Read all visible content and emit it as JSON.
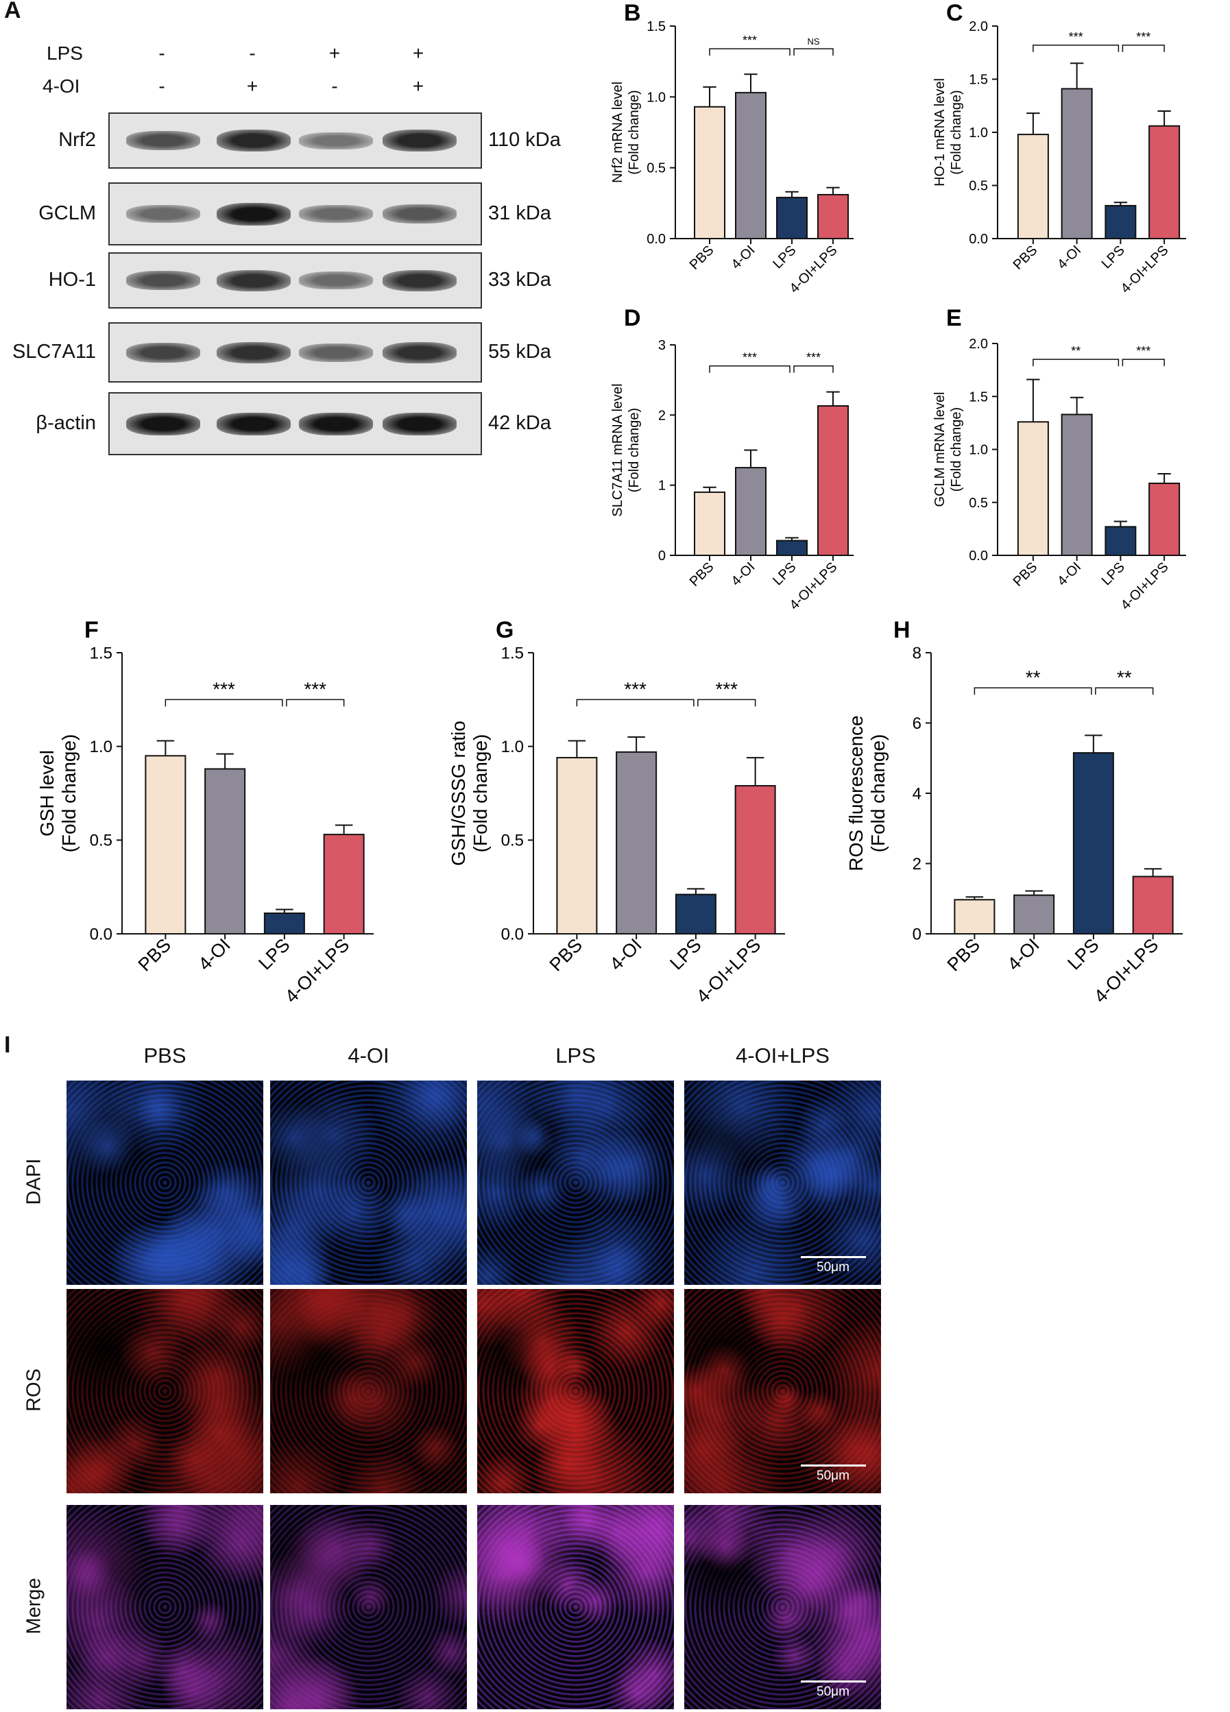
{
  "panelA": {
    "letter": "A",
    "rows": [
      {
        "label": "LPS",
        "signs": [
          "-",
          "-",
          "+",
          "+"
        ]
      },
      {
        "label": "4-OI",
        "signs": [
          "-",
          "+",
          "-",
          "+"
        ]
      }
    ],
    "blots": [
      {
        "protein": "Nrf2",
        "kda": "110 kDa",
        "intensity": [
          0.65,
          0.85,
          0.45,
          0.85
        ]
      },
      {
        "protein": "GCLM",
        "kda": "31 kDa",
        "intensity": [
          0.5,
          0.95,
          0.5,
          0.6
        ]
      },
      {
        "protein": "HO-1",
        "kda": "33 kDa",
        "intensity": [
          0.65,
          0.8,
          0.5,
          0.8
        ]
      },
      {
        "protein": "SLC7A11",
        "kda": "55 kDa",
        "intensity": [
          0.7,
          0.8,
          0.55,
          0.8
        ]
      },
      {
        "protein": "β-actin",
        "kda": "42 kDa",
        "intensity": [
          0.95,
          0.95,
          0.95,
          0.95
        ]
      }
    ]
  },
  "colors": {
    "PBS": "#f5e3cf",
    "4-OI": "#8e8a97",
    "LPS": "#1c3a63",
    "4-OI+LPS": "#d85866"
  },
  "chart_data": [
    {
      "id": "B",
      "type": "bar",
      "letter": "B",
      "ylabel": [
        "Nrf2 mRNA level",
        "(Fold change)"
      ],
      "categories": [
        "PBS",
        "4-OI",
        "LPS",
        "4-OI+LPS"
      ],
      "values": [
        0.93,
        1.03,
        0.29,
        0.31
      ],
      "errors": [
        0.14,
        0.13,
        0.04,
        0.05
      ],
      "ylim": [
        0,
        1.5
      ],
      "yticks": [
        "0.0",
        "0.5",
        "1.0",
        "1.5"
      ],
      "yticksVals": [
        0,
        0.5,
        1.0,
        1.5
      ],
      "sig": [
        {
          "from": 0,
          "to": 2,
          "label": "***",
          "y": 1.34
        },
        {
          "from": 2,
          "to": 3,
          "label": "NS",
          "y": 1.34
        }
      ]
    },
    {
      "id": "C",
      "type": "bar",
      "letter": "C",
      "ylabel": [
        "HO-1 mRNA level",
        "(Fold change)"
      ],
      "categories": [
        "PBS",
        "4-OI",
        "LPS",
        "4-OI+LPS"
      ],
      "values": [
        0.98,
        1.41,
        0.31,
        1.06
      ],
      "errors": [
        0.2,
        0.24,
        0.03,
        0.14
      ],
      "ylim": [
        0,
        2.0
      ],
      "yticks": [
        "0.0",
        "0.5",
        "1.0",
        "1.5",
        "2.0"
      ],
      "yticksVals": [
        0,
        0.5,
        1.0,
        1.5,
        2.0
      ],
      "sig": [
        {
          "from": 0,
          "to": 2,
          "label": "***",
          "y": 1.82
        },
        {
          "from": 2,
          "to": 3,
          "label": "***",
          "y": 1.82
        }
      ]
    },
    {
      "id": "D",
      "type": "bar",
      "letter": "D",
      "ylabel": [
        "SLC7A11 mRNA level",
        "(Fold change)"
      ],
      "categories": [
        "PBS",
        "4-OI",
        "LPS",
        "4-OI+LPS"
      ],
      "values": [
        0.9,
        1.25,
        0.21,
        2.13
      ],
      "errors": [
        0.07,
        0.25,
        0.04,
        0.2
      ],
      "ylim": [
        0,
        3
      ],
      "yticks": [
        "0",
        "1",
        "2",
        "3"
      ],
      "yticksVals": [
        0,
        1,
        2,
        3
      ],
      "sig": [
        {
          "from": 0,
          "to": 2,
          "label": "***",
          "y": 2.7
        },
        {
          "from": 2,
          "to": 3,
          "label": "***",
          "y": 2.7
        }
      ]
    },
    {
      "id": "E",
      "type": "bar",
      "letter": "E",
      "ylabel": [
        "GCLM mRNA level",
        "(Fold change)"
      ],
      "categories": [
        "PBS",
        "4-OI",
        "LPS",
        "4-OI+LPS"
      ],
      "values": [
        1.26,
        1.33,
        0.27,
        0.68
      ],
      "errors": [
        0.4,
        0.16,
        0.05,
        0.09
      ],
      "ylim": [
        0,
        2.0
      ],
      "yticks": [
        "0.0",
        "0.5",
        "1.0",
        "1.5",
        "2.0"
      ],
      "yticksVals": [
        0,
        0.5,
        1.0,
        1.5,
        2.0
      ],
      "sig": [
        {
          "from": 0,
          "to": 2,
          "label": "**",
          "y": 1.85
        },
        {
          "from": 2,
          "to": 3,
          "label": "***",
          "y": 1.85
        }
      ]
    },
    {
      "id": "F",
      "type": "bar",
      "letter": "F",
      "ylabel": [
        "GSH level",
        "(Fold change)"
      ],
      "categories": [
        "PBS",
        "4-OI",
        "LPS",
        "4-OI+LPS"
      ],
      "values": [
        0.95,
        0.88,
        0.11,
        0.53
      ],
      "errors": [
        0.08,
        0.08,
        0.02,
        0.05
      ],
      "ylim": [
        0,
        1.5
      ],
      "yticks": [
        "0.0",
        "0.5",
        "1.0",
        "1.5"
      ],
      "yticksVals": [
        0,
        0.5,
        1.0,
        1.5
      ],
      "sig": [
        {
          "from": 0,
          "to": 2,
          "label": "***",
          "y": 1.25
        },
        {
          "from": 2,
          "to": 3,
          "label": "***",
          "y": 1.25
        }
      ]
    },
    {
      "id": "G",
      "type": "bar",
      "letter": "G",
      "ylabel": [
        "GSH/GSSG ratio",
        "(Fold change)"
      ],
      "categories": [
        "PBS",
        "4-OI",
        "LPS",
        "4-OI+LPS"
      ],
      "values": [
        0.94,
        0.97,
        0.21,
        0.79
      ],
      "errors": [
        0.09,
        0.08,
        0.03,
        0.15
      ],
      "ylim": [
        0,
        1.5
      ],
      "yticks": [
        "0.0",
        "0.5",
        "1.0",
        "1.5"
      ],
      "yticksVals": [
        0,
        0.5,
        1.0,
        1.5
      ],
      "sig": [
        {
          "from": 0,
          "to": 2,
          "label": "***",
          "y": 1.25
        },
        {
          "from": 2,
          "to": 3,
          "label": "***",
          "y": 1.25
        }
      ]
    },
    {
      "id": "H",
      "type": "bar",
      "letter": "H",
      "ylabel": [
        "ROS fluorescence",
        "(Fold change)"
      ],
      "categories": [
        "PBS",
        "4-OI",
        "LPS",
        "4-OI+LPS"
      ],
      "values": [
        0.97,
        1.1,
        5.15,
        1.63
      ],
      "errors": [
        0.08,
        0.12,
        0.5,
        0.22
      ],
      "ylim": [
        0,
        8
      ],
      "yticks": [
        "0",
        "2",
        "4",
        "6",
        "8"
      ],
      "yticksVals": [
        0,
        2,
        4,
        6,
        8
      ],
      "sig": [
        {
          "from": 0,
          "to": 2,
          "label": "**",
          "y": 7.0
        },
        {
          "from": 2,
          "to": 3,
          "label": "**",
          "y": 7.0
        }
      ]
    }
  ],
  "panelI": {
    "letter": "I",
    "columns": [
      "PBS",
      "4-OI",
      "LPS",
      "4-OI+LPS"
    ],
    "rows": [
      "DAPI",
      "ROS",
      "Merge"
    ],
    "scale": "50μm"
  }
}
